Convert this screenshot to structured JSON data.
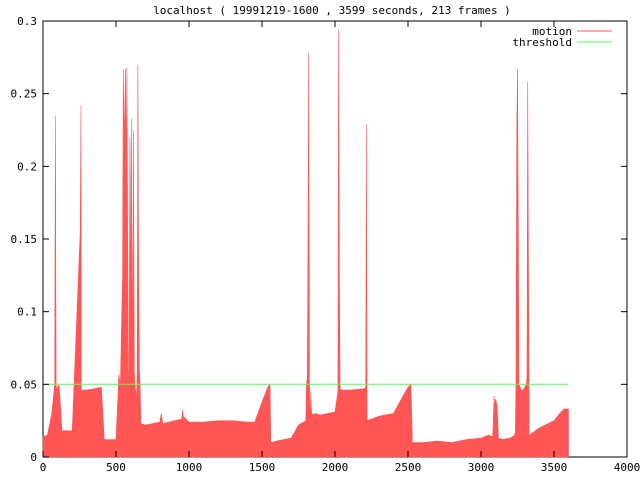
{
  "chart_data": {
    "type": "area",
    "title": "localhost ( 19991219-1600 , 3599 seconds, 213 frames )",
    "xlabel": "",
    "ylabel": "",
    "xlim": [
      0,
      4000
    ],
    "ylim": [
      0,
      0.3
    ],
    "x_ticks": [
      0,
      500,
      1000,
      1500,
      2000,
      2500,
      3000,
      3500,
      4000
    ],
    "y_ticks": [
      0,
      0.05,
      0.1,
      0.15,
      0.2,
      0.25,
      0.3
    ],
    "y_tick_labels": [
      "0",
      "0.05",
      "0.1",
      "0.15",
      "0.2",
      "0.25",
      "0.3"
    ],
    "grid": false,
    "legend_position": "top-right",
    "series": [
      {
        "name": "motion",
        "color": "#ff5555",
        "style": "filled-impulses",
        "x": [
          0,
          30,
          60,
          80,
          85,
          90,
          95,
          100,
          110,
          130,
          140,
          200,
          255,
          260,
          262,
          265,
          270,
          300,
          350,
          400,
          420,
          430,
          500,
          520,
          530,
          540,
          545,
          550,
          555,
          560,
          565,
          570,
          575,
          580,
          585,
          590,
          595,
          600,
          605,
          610,
          615,
          620,
          625,
          630,
          635,
          640,
          645,
          650,
          655,
          660,
          665,
          670,
          700,
          750,
          800,
          810,
          820,
          900,
          950,
          955,
          960,
          1000,
          1100,
          1200,
          1300,
          1400,
          1450,
          1500,
          1540,
          1555,
          1560,
          1600,
          1700,
          1750,
          1800,
          1805,
          1810,
          1815,
          1820,
          1825,
          1830,
          1835,
          1840,
          1850,
          1860,
          1900,
          1950,
          2000,
          2020,
          2025,
          2030,
          2035,
          2040,
          2100,
          2200,
          2210,
          2215,
          2220,
          2300,
          2400,
          2500,
          2520,
          2530,
          2600,
          2700,
          2800,
          2900,
          3000,
          3050,
          3080,
          3090,
          3095,
          3100,
          3110,
          3120,
          3130,
          3140,
          3200,
          3230,
          3235,
          3240,
          3245,
          3250,
          3260,
          3280,
          3300,
          3310,
          3315,
          3320,
          3330,
          3400,
          3500,
          3540,
          3570,
          3599
        ],
        "values": [
          0.014,
          0.015,
          0.03,
          0.05,
          0.235,
          0.05,
          0.045,
          0.048,
          0.05,
          0.018,
          0.018,
          0.018,
          0.155,
          0.242,
          0.044,
          0.045,
          0.046,
          0.046,
          0.047,
          0.048,
          0.012,
          0.012,
          0.012,
          0.057,
          0.05,
          0.1,
          0.125,
          0.267,
          0.22,
          0.24,
          0.267,
          0.19,
          0.268,
          0.15,
          0.06,
          0.05,
          0.22,
          0.08,
          0.233,
          0.14,
          0.06,
          0.225,
          0.058,
          0.05,
          0.045,
          0.04,
          0.058,
          0.27,
          0.13,
          0.06,
          0.05,
          0.023,
          0.022,
          0.023,
          0.024,
          0.03,
          0.023,
          0.025,
          0.026,
          0.032,
          0.028,
          0.024,
          0.024,
          0.025,
          0.025,
          0.024,
          0.024,
          0.038,
          0.048,
          0.05,
          0.01,
          0.011,
          0.013,
          0.022,
          0.025,
          0.05,
          0.055,
          0.15,
          0.278,
          0.055,
          0.02,
          0.045,
          0.03,
          0.029,
          0.03,
          0.029,
          0.03,
          0.031,
          0.045,
          0.294,
          0.12,
          0.047,
          0.046,
          0.046,
          0.047,
          0.048,
          0.229,
          0.025,
          0.028,
          0.03,
          0.048,
          0.05,
          0.01,
          0.01,
          0.011,
          0.01,
          0.012,
          0.013,
          0.015,
          0.014,
          0.042,
          0.035,
          0.04,
          0.035,
          0.012,
          0.013,
          0.012,
          0.013,
          0.015,
          0.017,
          0.052,
          0.228,
          0.267,
          0.05,
          0.045,
          0.048,
          0.05,
          0.055,
          0.258,
          0.015,
          0.02,
          0.025,
          0.03,
          0.033,
          0.033
        ]
      },
      {
        "name": "threshold",
        "color": "#55ff55",
        "style": "line",
        "x": [
          0,
          3599
        ],
        "values": [
          0.05,
          0.05
        ]
      }
    ]
  }
}
